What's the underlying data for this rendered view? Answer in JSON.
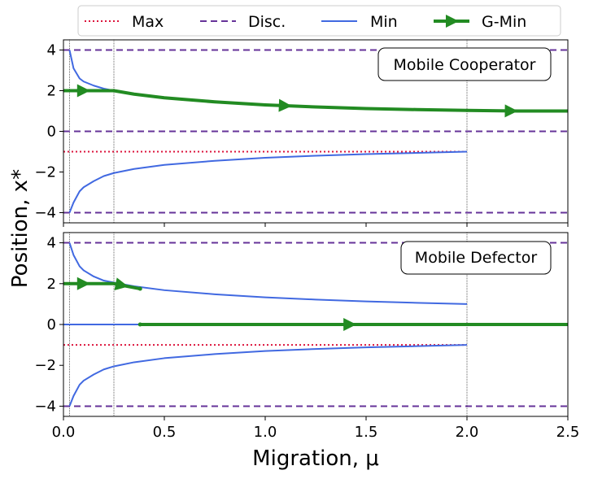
{
  "legend": {
    "placement": "top-center",
    "entries": [
      {
        "label": "Max",
        "color": "#dc143c",
        "style": "dotted"
      },
      {
        "label": "Disc.",
        "color": "#663399",
        "style": "dashed"
      },
      {
        "label": "Min",
        "color": "#4169e1",
        "style": "solid"
      },
      {
        "label": "G-Min",
        "color": "#228b22",
        "style": "solid-arrow"
      }
    ]
  },
  "axes": {
    "xlabel": "Migration, μ",
    "ylabel": "Position, x*",
    "xlim": [
      0.0,
      2.5
    ],
    "ylim": [
      -4.5,
      4.5
    ],
    "xticks": [
      "0.0",
      "0.5",
      "1.0",
      "1.5",
      "2.0",
      "2.5"
    ],
    "yticks": [
      "−4",
      "−2",
      "0",
      "2",
      "4"
    ],
    "grid": false
  },
  "chart_data": [
    {
      "type": "line",
      "panel": "top",
      "annotation": "Mobile Cooperator",
      "vlines": [
        0.03,
        0.25,
        2.0
      ],
      "series": [
        {
          "name": "Disc.",
          "x": [
            0.0,
            2.5
          ],
          "y": [
            4,
            4
          ]
        },
        {
          "name": "Disc.",
          "x": [
            0.0,
            2.5
          ],
          "y": [
            0,
            0
          ]
        },
        {
          "name": "Disc.",
          "x": [
            0.0,
            2.5
          ],
          "y": [
            -4,
            -4
          ]
        },
        {
          "name": "Max",
          "x": [
            0.0,
            2.0
          ],
          "y": [
            -1,
            -1
          ]
        },
        {
          "name": "Min",
          "x": [
            0.03,
            0.05,
            0.08,
            0.1,
            0.15,
            0.2,
            0.25
          ],
          "y": [
            4.0,
            3.1,
            2.6,
            2.45,
            2.25,
            2.1,
            2.0
          ]
        },
        {
          "name": "Min",
          "x": [
            0.03,
            0.05,
            0.08,
            0.1,
            0.15,
            0.2,
            0.25,
            0.35,
            0.5,
            0.75,
            1.0,
            1.25,
            1.5,
            1.75,
            2.0
          ],
          "y": [
            -4.0,
            -3.5,
            -2.95,
            -2.75,
            -2.45,
            -2.2,
            -2.05,
            -1.85,
            -1.65,
            -1.45,
            -1.3,
            -1.2,
            -1.12,
            -1.06,
            -1.0
          ]
        },
        {
          "name": "G-Min",
          "x": [
            0.0,
            0.25,
            0.35,
            0.5,
            0.75,
            1.0,
            1.25,
            1.5,
            1.75,
            2.0,
            2.25,
            2.5
          ],
          "y": [
            2.0,
            2.0,
            1.83,
            1.65,
            1.45,
            1.3,
            1.2,
            1.12,
            1.07,
            1.03,
            1.0,
            1.0
          ],
          "arrows_at_x": [
            0.1,
            1.1,
            2.22
          ]
        }
      ]
    },
    {
      "type": "line",
      "panel": "bottom",
      "annotation": "Mobile Defector",
      "vlines": [
        0.03,
        0.25,
        2.0
      ],
      "series": [
        {
          "name": "Disc.",
          "x": [
            0.0,
            2.5
          ],
          "y": [
            4,
            4
          ]
        },
        {
          "name": "Disc.",
          "x": [
            0.0,
            2.5
          ],
          "y": [
            -4,
            -4
          ]
        },
        {
          "name": "Max",
          "x": [
            0.0,
            2.0
          ],
          "y": [
            -1,
            -1
          ]
        },
        {
          "name": "Min",
          "x": [
            0.03,
            0.05,
            0.08,
            0.1,
            0.15,
            0.2,
            0.25,
            0.35,
            0.5,
            0.75,
            1.0,
            1.25,
            1.5,
            1.75,
            2.0
          ],
          "y": [
            4.0,
            3.4,
            2.85,
            2.65,
            2.35,
            2.15,
            2.05,
            1.87,
            1.68,
            1.48,
            1.33,
            1.22,
            1.13,
            1.06,
            1.0
          ]
        },
        {
          "name": "Min",
          "x": [
            0.0,
            0.38
          ],
          "y": [
            0,
            0
          ]
        },
        {
          "name": "Min",
          "x": [
            0.03,
            0.05,
            0.08,
            0.1,
            0.15,
            0.2,
            0.25,
            0.35,
            0.5,
            0.75,
            1.0,
            1.25,
            1.5,
            1.75,
            2.0
          ],
          "y": [
            -4.0,
            -3.5,
            -2.95,
            -2.75,
            -2.45,
            -2.2,
            -2.05,
            -1.85,
            -1.65,
            -1.45,
            -1.3,
            -1.2,
            -1.12,
            -1.06,
            -1.0
          ]
        },
        {
          "name": "G-Min",
          "x": [
            0.0,
            0.25,
            0.3,
            0.38
          ],
          "y": [
            2.0,
            2.0,
            1.9,
            1.75
          ],
          "arrows_at_x": [
            0.1,
            0.29
          ]
        },
        {
          "name": "G-Min",
          "x": [
            0.38,
            2.5
          ],
          "y": [
            0,
            0
          ],
          "arrows_at_x": [
            1.42
          ]
        }
      ]
    }
  ]
}
